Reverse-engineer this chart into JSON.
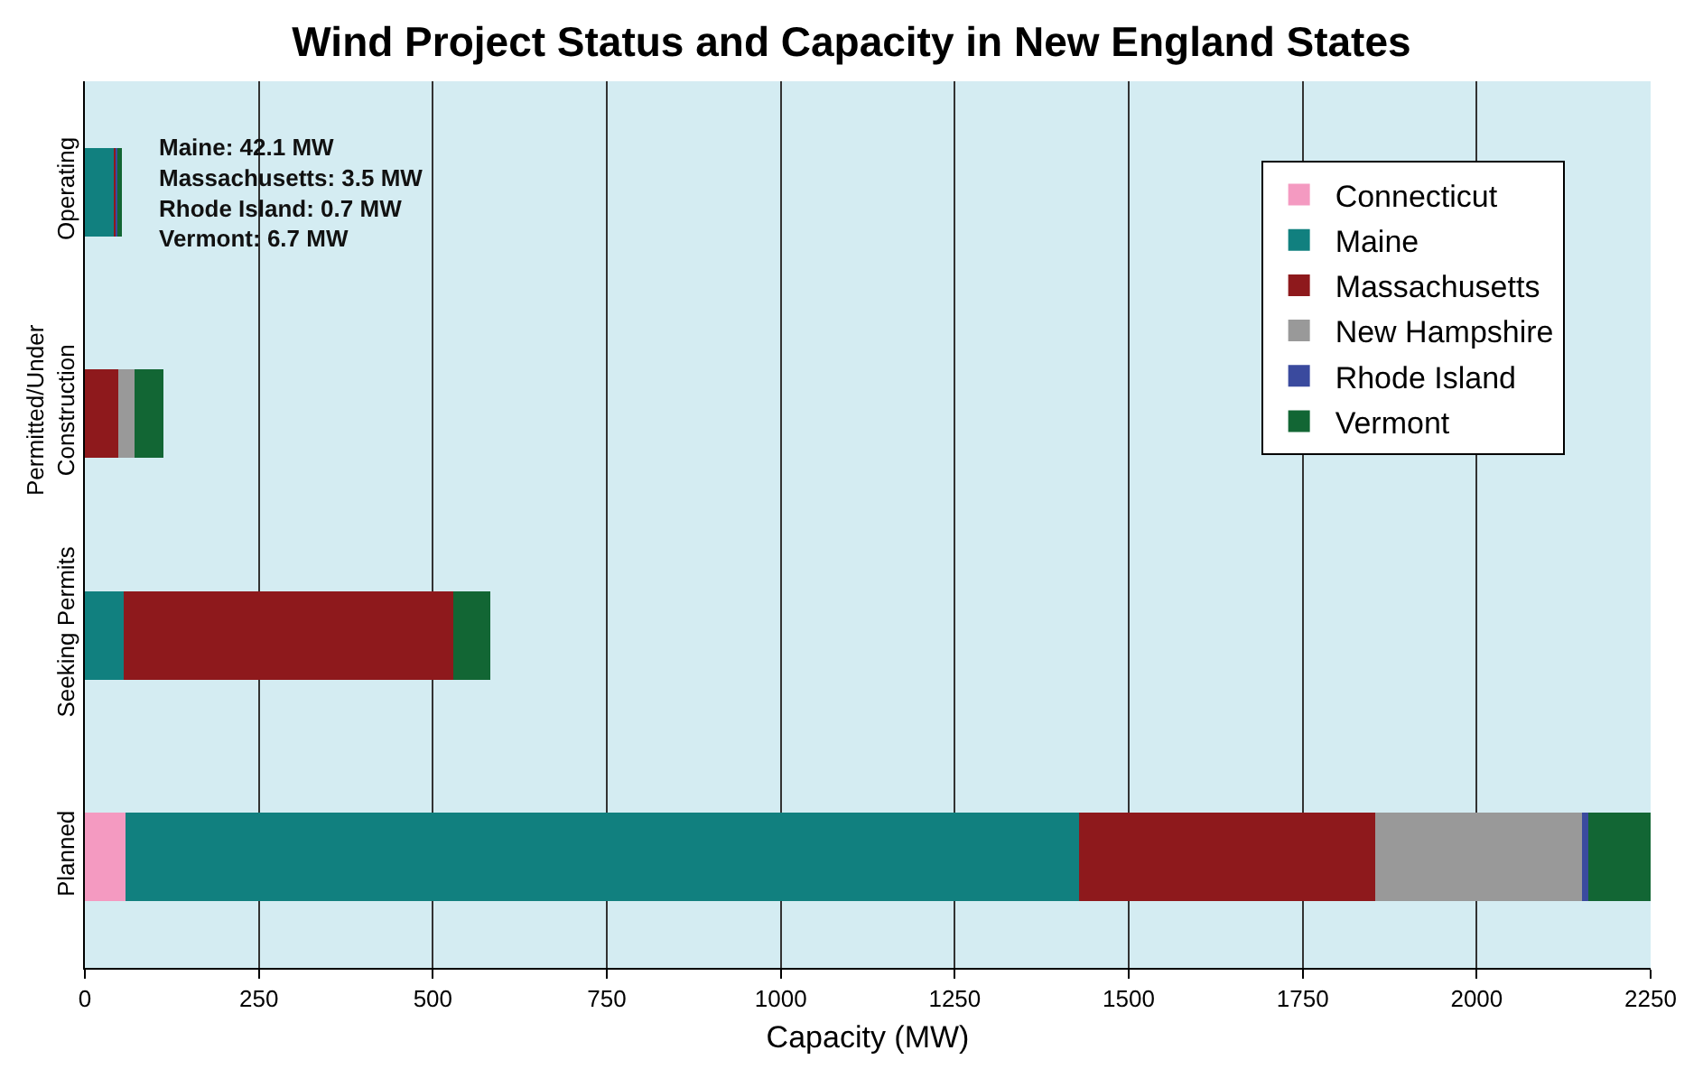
{
  "chart_data": {
    "type": "bar",
    "orientation": "horizontal",
    "stacked": true,
    "title": "Wind Project Status and Capacity in New England States",
    "xlabel": "Capacity (MW)",
    "categories": [
      "Operating",
      "Permitted/Under Construction",
      "Seeking Permits",
      "Planned"
    ],
    "series": [
      {
        "name": "Connecticut",
        "color": "#f49ac1",
        "values": [
          0,
          0,
          0,
          59
        ]
      },
      {
        "name": "Maine",
        "color": "#11807f",
        "values": [
          42.1,
          0,
          56,
          1370
        ]
      },
      {
        "name": "Massachusetts",
        "color": "#8e191c",
        "values": [
          3.5,
          48,
          474,
          425
        ]
      },
      {
        "name": "New Hampshire",
        "color": "#999999",
        "values": [
          0,
          24,
          0,
          298
        ]
      },
      {
        "name": "Rhode Island",
        "color": "#3a4a9e",
        "values": [
          0.7,
          0,
          0,
          9
        ]
      },
      {
        "name": "Vermont",
        "color": "#126634",
        "values": [
          6.7,
          41,
          52,
          89
        ]
      }
    ],
    "xlim": [
      0,
      2250
    ],
    "xticks": [
      0,
      250,
      500,
      750,
      1000,
      1250,
      1500,
      1750,
      2000,
      2250
    ],
    "grid": "x",
    "legend": "top right",
    "annotations": [
      "Maine: 42.1 MW\nMassachusetts: 3.5 MW\nRhode Island: 0.7 MW\nVermont: 6.7 MW"
    ]
  }
}
